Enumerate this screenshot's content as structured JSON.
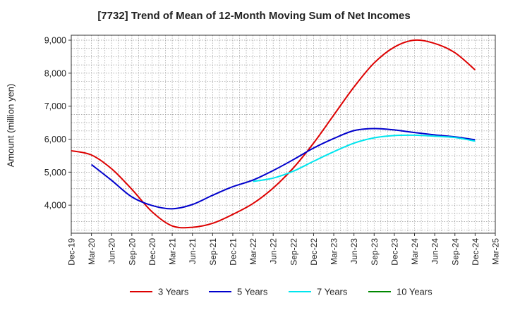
{
  "chart_data": {
    "type": "line",
    "title": "[7732]  Trend of Mean of 12-Month Moving Sum of Net Incomes",
    "xlabel": "",
    "ylabel": "Amount (million yen)",
    "ylim": [
      3150,
      9150
    ],
    "yticks": [
      4000,
      5000,
      6000,
      7000,
      8000,
      9000
    ],
    "ytick_labels": [
      "4,000",
      "5,000",
      "6,000",
      "7,000",
      "8,000",
      "9,000"
    ],
    "xtick_labels": [
      "Dec-19",
      "Mar-20",
      "Jun-20",
      "Sep-20",
      "Dec-20",
      "Mar-21",
      "Jun-21",
      "Sep-21",
      "Dec-21",
      "Mar-22",
      "Jun-22",
      "Sep-22",
      "Dec-22",
      "Mar-23",
      "Jun-23",
      "Sep-23",
      "Dec-23",
      "Mar-24",
      "Jun-24",
      "Sep-24",
      "Dec-24",
      "Mar-25"
    ],
    "grid": true,
    "legend_position": "bottom",
    "series": [
      {
        "name": "3 Years",
        "color": "#dd0000",
        "points": [
          [
            "Dec-19",
            5650
          ],
          [
            "Mar-20",
            5520
          ],
          [
            "Jun-20",
            5100
          ],
          [
            "Sep-20",
            4480
          ],
          [
            "Dec-20",
            3800
          ],
          [
            "Mar-21",
            3370
          ],
          [
            "Jun-21",
            3330
          ],
          [
            "Sep-21",
            3450
          ],
          [
            "Dec-21",
            3720
          ],
          [
            "Mar-22",
            4050
          ],
          [
            "Jun-22",
            4520
          ],
          [
            "Sep-22",
            5130
          ],
          [
            "Dec-22",
            5880
          ],
          [
            "Mar-23",
            6730
          ],
          [
            "Jun-23",
            7580
          ],
          [
            "Sep-23",
            8310
          ],
          [
            "Dec-23",
            8790
          ],
          [
            "Mar-24",
            9000
          ],
          [
            "Jun-24",
            8900
          ],
          [
            "Sep-24",
            8620
          ],
          [
            "Dec-24",
            8100
          ]
        ]
      },
      {
        "name": "5 Years",
        "color": "#0000cc",
        "points": [
          [
            "Mar-20",
            5230
          ],
          [
            "Jun-20",
            4750
          ],
          [
            "Sep-20",
            4250
          ],
          [
            "Dec-20",
            3990
          ],
          [
            "Mar-21",
            3890
          ],
          [
            "Jun-21",
            4020
          ],
          [
            "Sep-21",
            4300
          ],
          [
            "Dec-21",
            4560
          ],
          [
            "Mar-22",
            4760
          ],
          [
            "Jun-22",
            5050
          ],
          [
            "Sep-22",
            5380
          ],
          [
            "Dec-22",
            5730
          ],
          [
            "Mar-23",
            6020
          ],
          [
            "Jun-23",
            6260
          ],
          [
            "Sep-23",
            6320
          ],
          [
            "Dec-23",
            6280
          ],
          [
            "Mar-24",
            6200
          ],
          [
            "Jun-24",
            6130
          ],
          [
            "Sep-24",
            6070
          ],
          [
            "Dec-24",
            5980
          ]
        ]
      },
      {
        "name": "7 Years",
        "color": "#00e5ee",
        "points": [
          [
            "Mar-22",
            4720
          ],
          [
            "Jun-22",
            4820
          ],
          [
            "Sep-22",
            5030
          ],
          [
            "Dec-22",
            5330
          ],
          [
            "Mar-23",
            5620
          ],
          [
            "Jun-23",
            5880
          ],
          [
            "Sep-23",
            6040
          ],
          [
            "Dec-23",
            6110
          ],
          [
            "Mar-24",
            6120
          ],
          [
            "Jun-24",
            6090
          ],
          [
            "Sep-24",
            6050
          ],
          [
            "Dec-24",
            5940
          ]
        ]
      },
      {
        "name": "10 Years",
        "color": "#008800",
        "points": []
      }
    ]
  }
}
